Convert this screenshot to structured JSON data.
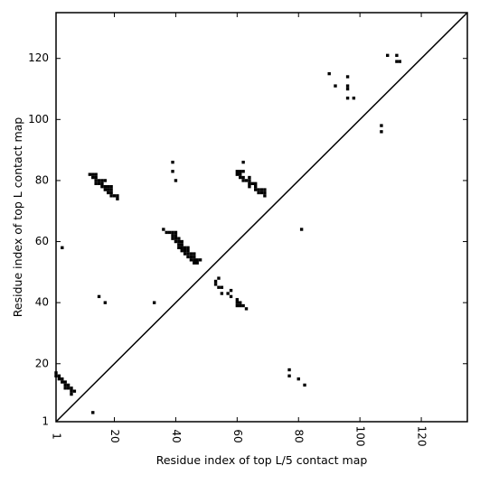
{
  "chart_data": {
    "type": "scatter",
    "xlabel": "Residue index of top L/5 contact map",
    "ylabel": "Residue index of top L contact map",
    "xlim": [
      1,
      135
    ],
    "ylim": [
      1,
      135
    ],
    "x_ticks": [
      {
        "value": 1,
        "label": "1"
      },
      {
        "value": 20,
        "label": "20"
      },
      {
        "value": 40,
        "label": "40"
      },
      {
        "value": 60,
        "label": "60"
      },
      {
        "value": 80,
        "label": "80"
      },
      {
        "value": 100,
        "label": "100"
      },
      {
        "value": 120,
        "label": "120"
      }
    ],
    "y_ticks": [
      {
        "value": 1,
        "label": "1"
      },
      {
        "value": 20,
        "label": "20"
      },
      {
        "value": 40,
        "label": "40"
      },
      {
        "value": 60,
        "label": "60"
      },
      {
        "value": 80,
        "label": "80"
      },
      {
        "value": 100,
        "label": "100"
      },
      {
        "value": 120,
        "label": "120"
      }
    ],
    "diagonal": true,
    "grid": false,
    "marker": "square",
    "color": "#000000",
    "series": [
      {
        "points": [
          [
            1,
            16
          ],
          [
            1,
            17
          ],
          [
            2,
            16
          ],
          [
            2,
            15
          ],
          [
            3,
            15
          ],
          [
            3,
            14
          ],
          [
            4,
            14
          ],
          [
            4,
            13
          ],
          [
            4,
            12
          ],
          [
            5,
            13
          ],
          [
            5,
            12
          ],
          [
            6,
            12
          ],
          [
            6,
            11
          ],
          [
            7,
            11
          ],
          [
            6,
            10
          ],
          [
            13,
            4
          ],
          [
            15,
            42
          ],
          [
            17,
            40
          ],
          [
            3,
            58
          ],
          [
            33,
            40
          ],
          [
            12,
            82
          ],
          [
            13,
            82
          ],
          [
            13,
            81
          ],
          [
            14,
            82
          ],
          [
            14,
            81
          ],
          [
            14,
            80
          ],
          [
            14,
            79
          ],
          [
            15,
            80
          ],
          [
            15,
            79
          ],
          [
            16,
            80
          ],
          [
            16,
            79
          ],
          [
            16,
            78
          ],
          [
            17,
            80
          ],
          [
            17,
            78
          ],
          [
            17,
            77
          ],
          [
            18,
            78
          ],
          [
            18,
            77
          ],
          [
            18,
            76
          ],
          [
            19,
            78
          ],
          [
            19,
            77
          ],
          [
            19,
            76
          ],
          [
            19,
            75
          ],
          [
            20,
            75
          ],
          [
            21,
            75
          ],
          [
            21,
            74
          ],
          [
            39,
            86
          ],
          [
            39,
            83
          ],
          [
            40,
            80
          ],
          [
            36,
            64
          ],
          [
            37,
            63
          ],
          [
            38,
            63
          ],
          [
            39,
            63
          ],
          [
            39,
            62
          ],
          [
            40,
            63
          ],
          [
            40,
            62
          ],
          [
            39,
            61
          ],
          [
            40,
            61
          ],
          [
            40,
            60
          ],
          [
            41,
            61
          ],
          [
            41,
            60
          ],
          [
            42,
            60
          ],
          [
            42,
            59
          ],
          [
            41,
            59
          ],
          [
            41,
            58
          ],
          [
            42,
            58
          ],
          [
            42,
            57
          ],
          [
            43,
            58
          ],
          [
            43,
            57
          ],
          [
            43,
            56
          ],
          [
            44,
            58
          ],
          [
            44,
            57
          ],
          [
            44,
            56
          ],
          [
            44,
            55
          ],
          [
            45,
            56
          ],
          [
            45,
            55
          ],
          [
            46,
            56
          ],
          [
            46,
            55
          ],
          [
            46,
            54
          ],
          [
            45,
            54
          ],
          [
            46,
            53
          ],
          [
            47,
            54
          ],
          [
            47,
            53
          ],
          [
            48,
            54
          ],
          [
            53,
            47
          ],
          [
            53,
            46
          ],
          [
            54,
            48
          ],
          [
            54,
            45
          ],
          [
            55,
            45
          ],
          [
            55,
            43
          ],
          [
            57,
            43
          ],
          [
            58,
            44
          ],
          [
            58,
            42
          ],
          [
            60,
            41
          ],
          [
            60,
            40
          ],
          [
            60,
            39
          ],
          [
            61,
            40
          ],
          [
            61,
            39
          ],
          [
            62,
            39
          ],
          [
            63,
            38
          ],
          [
            60,
            83
          ],
          [
            60,
            82
          ],
          [
            61,
            83
          ],
          [
            61,
            82
          ],
          [
            62,
            86
          ],
          [
            62,
            83
          ],
          [
            61,
            81
          ],
          [
            62,
            81
          ],
          [
            62,
            80
          ],
          [
            63,
            80
          ],
          [
            64,
            81
          ],
          [
            64,
            80
          ],
          [
            64,
            79
          ],
          [
            64,
            78
          ],
          [
            65,
            79
          ],
          [
            66,
            79
          ],
          [
            66,
            78
          ],
          [
            66,
            77
          ],
          [
            67,
            77
          ],
          [
            67,
            76
          ],
          [
            68,
            77
          ],
          [
            68,
            76
          ],
          [
            69,
            77
          ],
          [
            69,
            76
          ],
          [
            69,
            75
          ],
          [
            81,
            64
          ],
          [
            77,
            18
          ],
          [
            77,
            16
          ],
          [
            80,
            15
          ],
          [
            82,
            13
          ],
          [
            90,
            115
          ],
          [
            92,
            111
          ],
          [
            96,
            114
          ],
          [
            96,
            111
          ],
          [
            96,
            110
          ],
          [
            96,
            107
          ],
          [
            98,
            107
          ],
          [
            107,
            98
          ],
          [
            107,
            96
          ],
          [
            109,
            121
          ],
          [
            112,
            121
          ],
          [
            112,
            119
          ],
          [
            113,
            119
          ]
        ]
      }
    ]
  }
}
